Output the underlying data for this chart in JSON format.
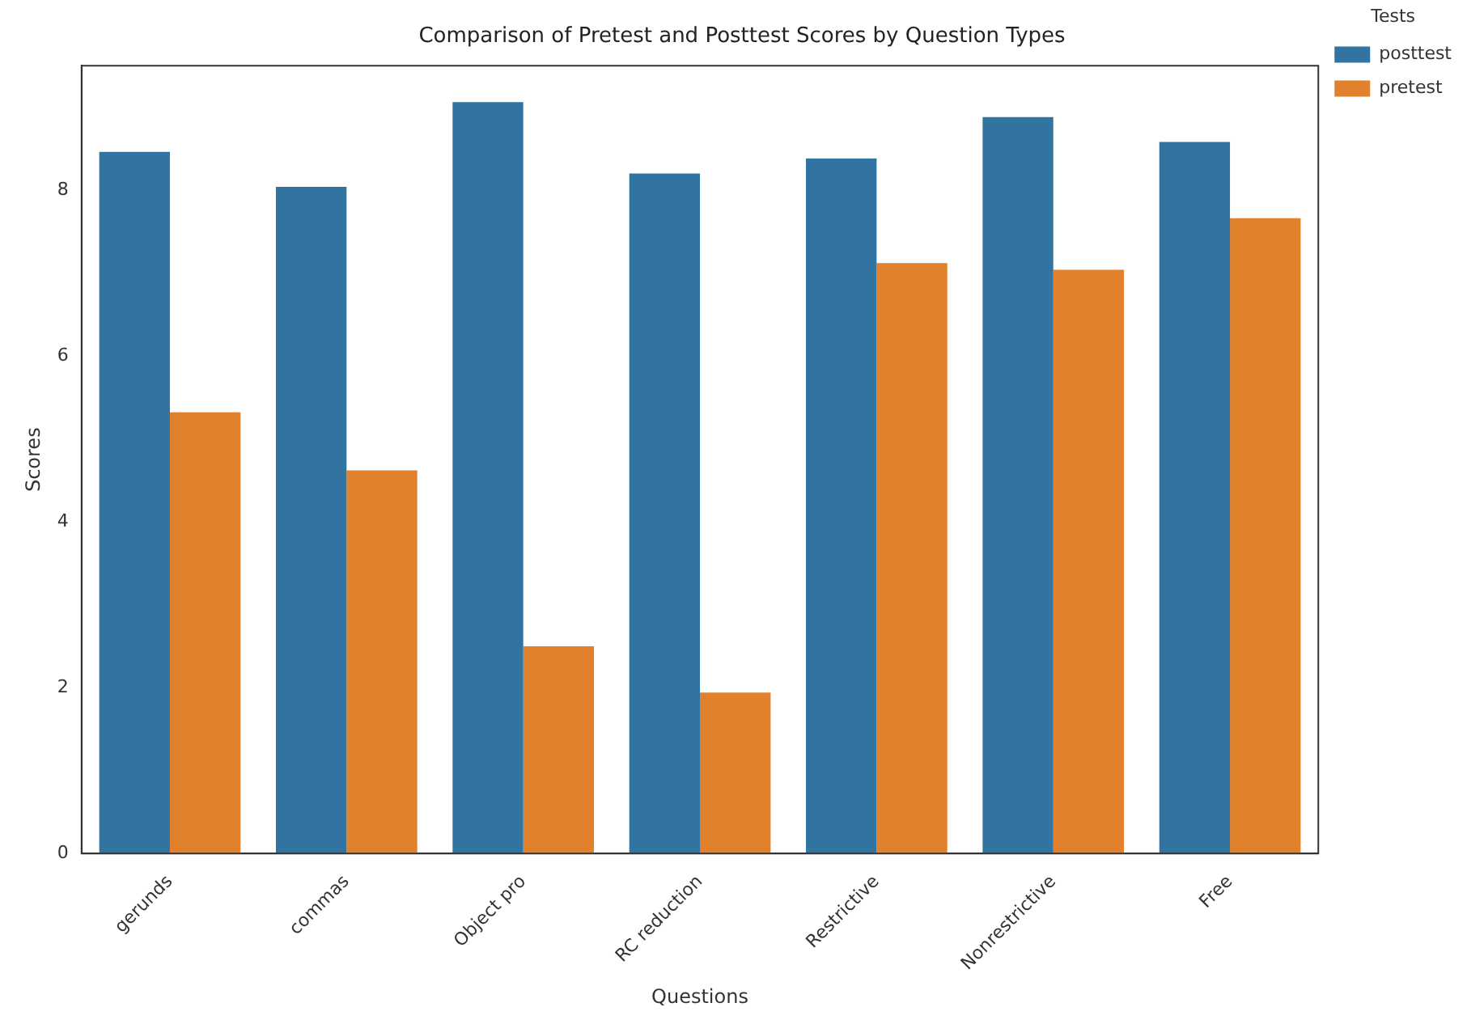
{
  "chart_data": {
    "type": "bar",
    "title": "Comparison of Pretest and Posttest Scores by Question Types",
    "xlabel": "Questions",
    "ylabel": "Scores",
    "legend_title": "Tests",
    "categories": [
      "gerunds",
      "commas",
      "Object pro",
      "RC reduction",
      "Restrictive",
      "Nonrestrictive",
      "Free"
    ],
    "series": [
      {
        "name": "posttest",
        "color": "#3274a1",
        "values": [
          8.46,
          8.04,
          9.06,
          8.2,
          8.38,
          8.88,
          8.58
        ]
      },
      {
        "name": "pretest",
        "color": "#e1812c",
        "values": [
          5.32,
          4.62,
          2.5,
          1.94,
          7.12,
          7.04,
          7.66
        ]
      }
    ],
    "ylim": [
      0,
      9.5
    ],
    "yticks": [
      0,
      2,
      4,
      6,
      8
    ],
    "grid": false,
    "legend": "top right"
  }
}
